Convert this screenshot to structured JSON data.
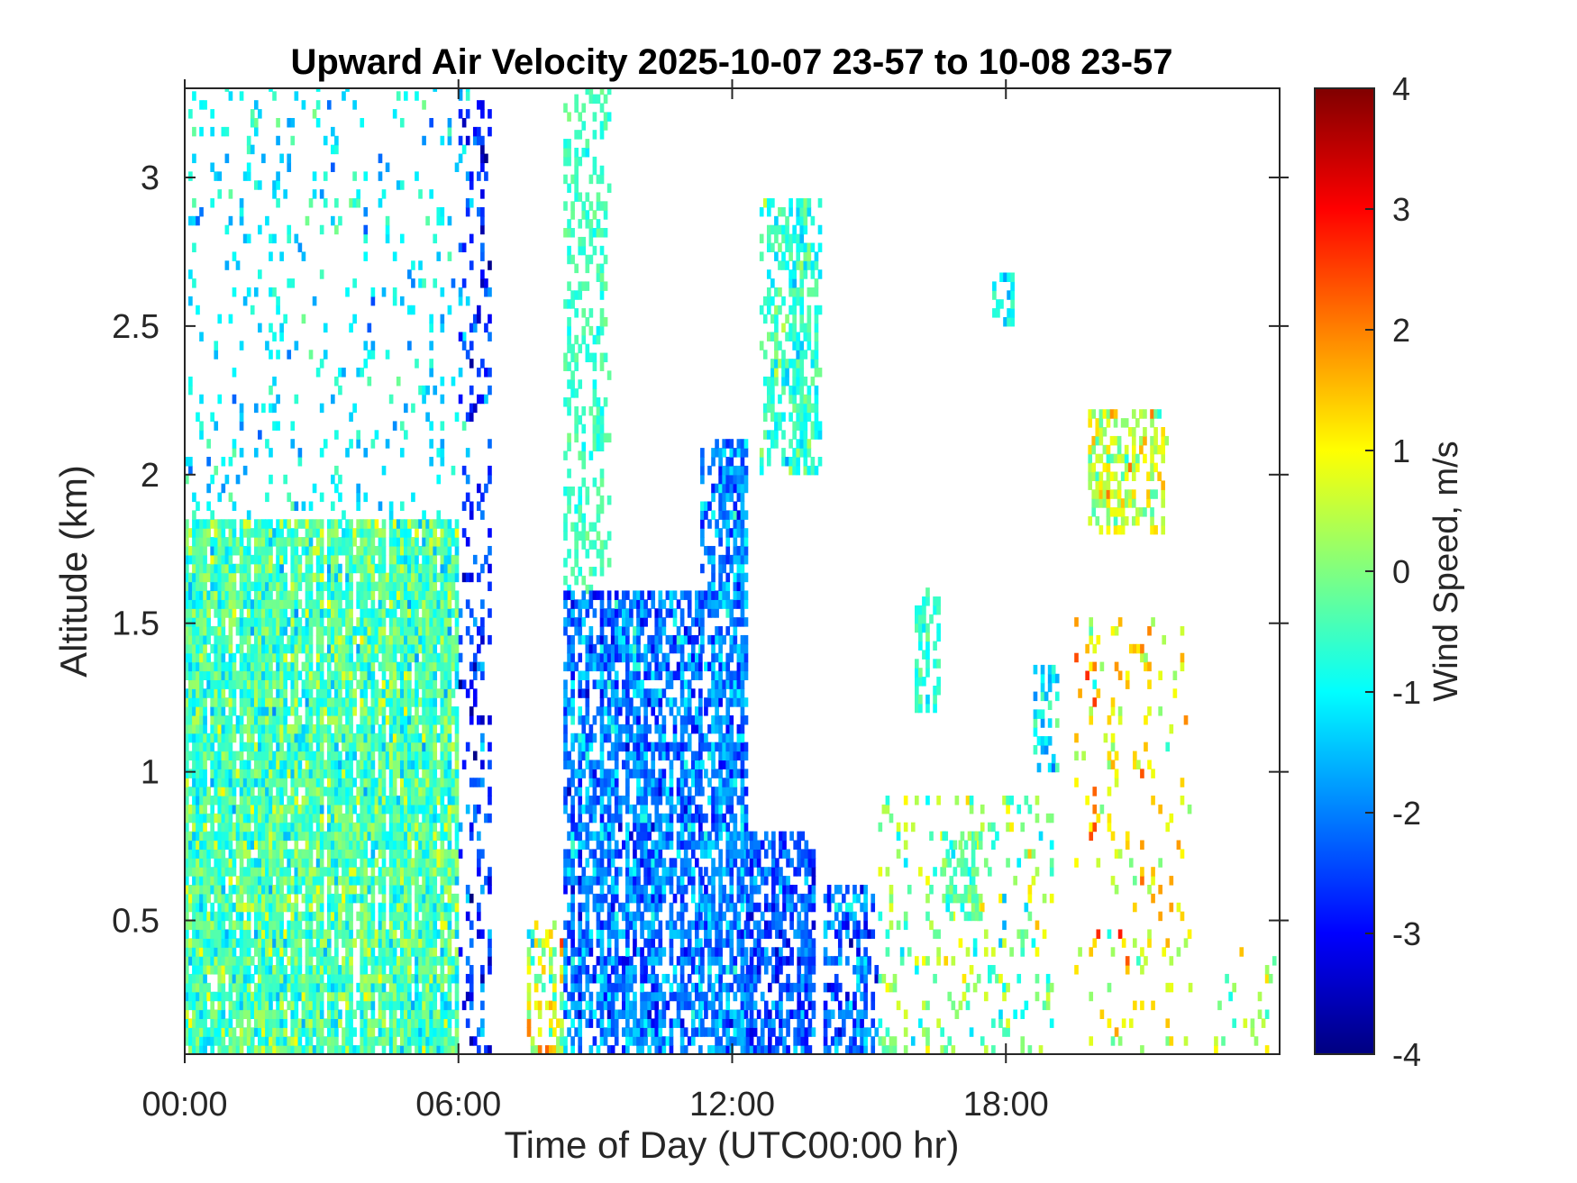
{
  "chart_data": {
    "type": "heatmap",
    "title": "Upward Air Velocity 2025-10-07 23-57 to 10-08 23-57",
    "xlabel": "Time of Day (UTC00:00 hr)",
    "ylabel": "Altitude (km)",
    "colorbar_label": "Wind Speed, m/s",
    "xlim": [
      0,
      24
    ],
    "ylim": [
      0.05,
      3.3
    ],
    "clim": [
      -4,
      4
    ],
    "colormap": "jet",
    "x_ticks": [
      {
        "value": 0,
        "label": "00:00"
      },
      {
        "value": 6,
        "label": "06:00"
      },
      {
        "value": 12,
        "label": "12:00"
      },
      {
        "value": 18,
        "label": "18:00"
      }
    ],
    "y_ticks": [
      {
        "value": 0.5,
        "label": "0.5"
      },
      {
        "value": 1,
        "label": "1"
      },
      {
        "value": 1.5,
        "label": "1.5"
      },
      {
        "value": 2,
        "label": "2"
      },
      {
        "value": 2.5,
        "label": "2.5"
      },
      {
        "value": 3,
        "label": "3"
      }
    ],
    "colorbar_ticks": [
      {
        "value": 4,
        "label": "4"
      },
      {
        "value": 3,
        "label": "3"
      },
      {
        "value": 2,
        "label": "2"
      },
      {
        "value": 1,
        "label": "1"
      },
      {
        "value": 0,
        "label": "0"
      },
      {
        "value": -1,
        "label": "-1"
      },
      {
        "value": -2,
        "label": "-2"
      },
      {
        "value": -3,
        "label": "-3"
      },
      {
        "value": -4,
        "label": "-4"
      }
    ],
    "regions": [
      {
        "x": [
          0,
          6
        ],
        "y": [
          0.05,
          1.85
        ],
        "mean": -0.4,
        "spread": 1.1,
        "density": 0.9
      },
      {
        "x": [
          0,
          6.2
        ],
        "y": [
          1.85,
          3.3
        ],
        "mean": -1.1,
        "spread": 1.0,
        "density": 0.1
      },
      {
        "x": [
          6,
          6.7
        ],
        "y": [
          0.05,
          3.3
        ],
        "mean": -2.6,
        "spread": 1.2,
        "density": 0.25
      },
      {
        "x": [
          7.5,
          8.3
        ],
        "y": [
          0.05,
          0.5
        ],
        "mean": 0.5,
        "spread": 2.2,
        "density": 0.45
      },
      {
        "x": [
          8.3,
          9.3
        ],
        "y": [
          1.6,
          3.3
        ],
        "mean": -0.5,
        "spread": 0.5,
        "density": 0.35
      },
      {
        "x": [
          8.3,
          11.3
        ],
        "y": [
          0.05,
          1.6
        ],
        "mean": -2.0,
        "spread": 1.2,
        "density": 0.65
      },
      {
        "x": [
          11.3,
          12.3
        ],
        "y": [
          0.05,
          2.1
        ],
        "mean": -1.9,
        "spread": 1.1,
        "density": 0.65
      },
      {
        "x": [
          12.3,
          13.8
        ],
        "y": [
          0.05,
          0.8
        ],
        "mean": -2.4,
        "spread": 1.0,
        "density": 0.65
      },
      {
        "x": [
          12.6,
          13.9
        ],
        "y": [
          2.0,
          2.9
        ],
        "mean": -0.6,
        "spread": 0.9,
        "density": 0.5
      },
      {
        "x": [
          14.0,
          15.2
        ],
        "y": [
          0.05,
          0.6
        ],
        "mean": -2.2,
        "spread": 1.2,
        "density": 0.5
      },
      {
        "x": [
          15.2,
          19
        ],
        "y": [
          0.05,
          0.9
        ],
        "mean": -0.1,
        "spread": 1.3,
        "density": 0.15
      },
      {
        "x": [
          16,
          16.5
        ],
        "y": [
          1.2,
          1.6
        ],
        "mean": -0.6,
        "spread": 0.6,
        "density": 0.5
      },
      {
        "x": [
          16.6,
          17.4
        ],
        "y": [
          0.5,
          0.8
        ],
        "mean": -0.2,
        "spread": 0.8,
        "density": 0.5
      },
      {
        "x": [
          17.7,
          18.1
        ],
        "y": [
          2.5,
          2.65
        ],
        "mean": -0.9,
        "spread": 0.8,
        "density": 0.6
      },
      {
        "x": [
          18.6,
          19.1
        ],
        "y": [
          1.0,
          1.35
        ],
        "mean": -1.3,
        "spread": 1.0,
        "density": 0.5
      },
      {
        "x": [
          19.8,
          21.5
        ],
        "y": [
          1.8,
          2.2
        ],
        "mean": 0.6,
        "spread": 1.2,
        "density": 0.5
      },
      {
        "x": [
          19.5,
          22
        ],
        "y": [
          0.05,
          1.5
        ],
        "mean": 1.0,
        "spread": 1.6,
        "density": 0.12
      },
      {
        "x": [
          22,
          24
        ],
        "y": [
          0.05,
          0.4
        ],
        "mean": 0.3,
        "spread": 1.5,
        "density": 0.1
      }
    ]
  }
}
